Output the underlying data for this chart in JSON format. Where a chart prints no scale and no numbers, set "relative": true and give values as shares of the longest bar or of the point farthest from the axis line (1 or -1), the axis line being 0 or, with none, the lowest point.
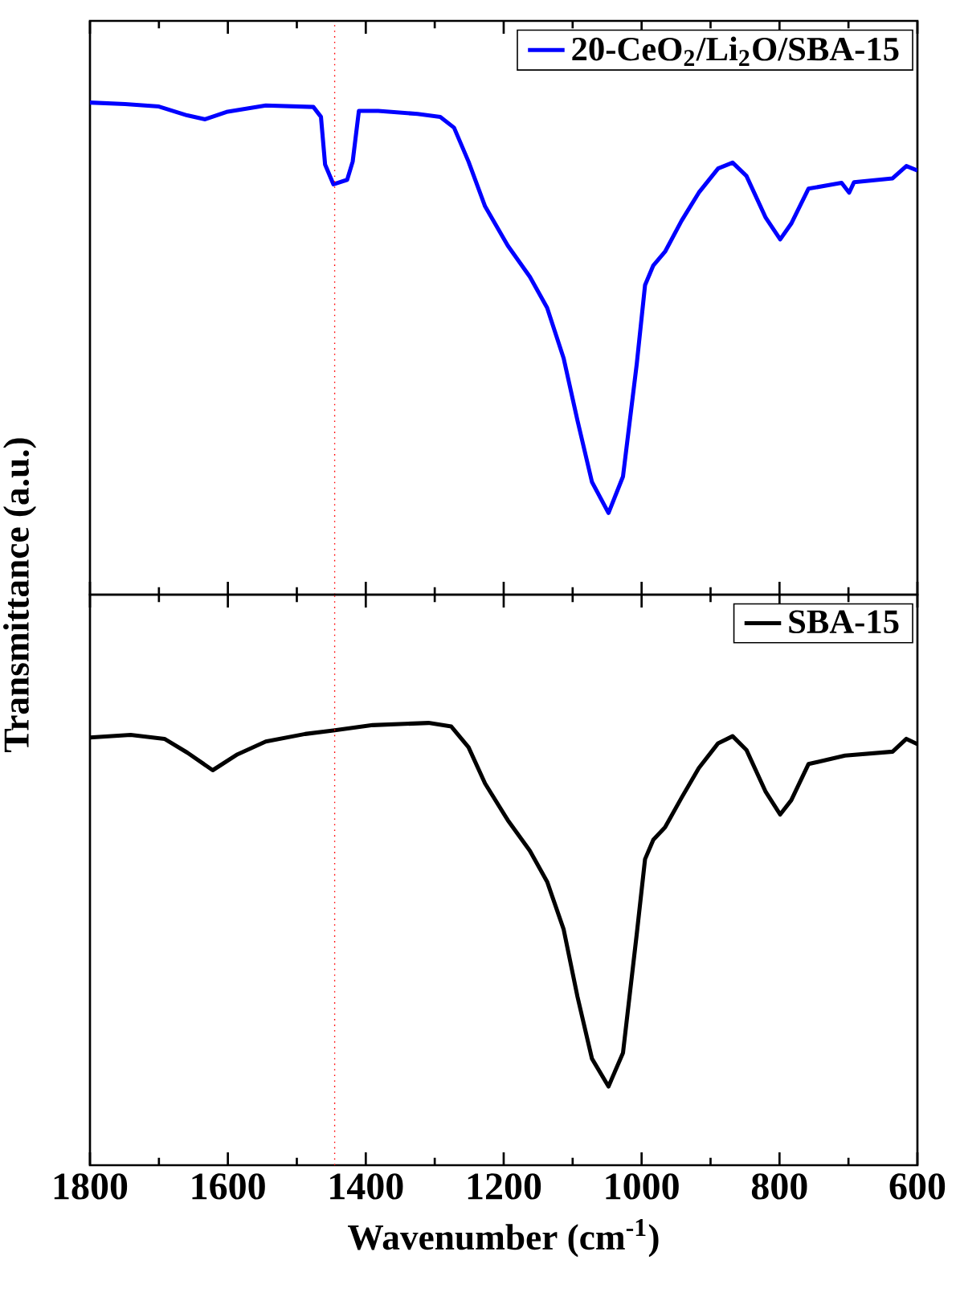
{
  "chart_data": [
    {
      "type": "line",
      "relative": true,
      "ylabel": "Transmittance (a.u.)",
      "xlim": [
        1800,
        600
      ],
      "xticks": [
        1800,
        1600,
        1400,
        1200,
        1000,
        800,
        600
      ],
      "tick_labels": false,
      "legend": "top right",
      "marker": "none",
      "line_style": "solid",
      "ref_lines": [
        {
          "axis": "x",
          "value": 1445,
          "color": "#ff0000",
          "line_style": "dotted"
        }
      ],
      "series": [
        {
          "name": "20-CeO$_{2}$/Li$_{2}$O/SBA-15",
          "color": "#0000ff",
          "x": [
            1800,
            1749,
            1700,
            1659,
            1633,
            1602,
            1545,
            1476,
            1465,
            1459,
            1447,
            1427,
            1419,
            1410,
            1382,
            1325,
            1292,
            1272,
            1251,
            1227,
            1194,
            1162,
            1137,
            1113,
            1093,
            1072,
            1048,
            1027,
            1007,
            995,
            983,
            966,
            942,
            917,
            889,
            868,
            848,
            820,
            799,
            783,
            758,
            710,
            699,
            692,
            636,
            616,
            600
          ],
          "values": [
            1.0,
            0.997,
            0.992,
            0.974,
            0.966,
            0.981,
            0.994,
            0.991,
            0.971,
            0.874,
            0.834,
            0.843,
            0.88,
            0.983,
            0.983,
            0.977,
            0.971,
            0.949,
            0.88,
            0.789,
            0.709,
            0.646,
            0.583,
            0.48,
            0.354,
            0.229,
            0.166,
            0.24,
            0.469,
            0.629,
            0.669,
            0.697,
            0.76,
            0.817,
            0.866,
            0.878,
            0.851,
            0.766,
            0.722,
            0.754,
            0.825,
            0.837,
            0.817,
            0.838,
            0.846,
            0.871,
            0.862
          ]
        }
      ]
    },
    {
      "type": "line",
      "relative": true,
      "xlabel": "Wavenumber (cm$^{-1}$)",
      "xlim": [
        1800,
        600
      ],
      "xticks": [
        1800,
        1600,
        1400,
        1200,
        1000,
        800,
        600
      ],
      "tick_labels": "x",
      "legend": "top right",
      "marker": "none",
      "line_style": "solid",
      "ref_lines": [
        {
          "axis": "x",
          "value": 1445,
          "color": "#ff0000",
          "line_style": "dotted"
        }
      ],
      "series": [
        {
          "name": "SBA-15",
          "color": "#000000",
          "x": [
            1800,
            1741,
            1692,
            1659,
            1622,
            1586,
            1545,
            1488,
            1447,
            1390,
            1309,
            1276,
            1251,
            1227,
            1194,
            1162,
            1137,
            1113,
            1093,
            1072,
            1048,
            1027,
            1007,
            995,
            983,
            966,
            942,
            917,
            889,
            868,
            848,
            820,
            799,
            783,
            758,
            705,
            636,
            616,
            600
          ],
          "values": [
            0.967,
            0.973,
            0.964,
            0.933,
            0.893,
            0.929,
            0.958,
            0.975,
            0.983,
            0.995,
            1.0,
            0.992,
            0.945,
            0.863,
            0.78,
            0.711,
            0.641,
            0.533,
            0.381,
            0.241,
            0.178,
            0.254,
            0.523,
            0.692,
            0.736,
            0.764,
            0.831,
            0.898,
            0.954,
            0.97,
            0.939,
            0.844,
            0.793,
            0.825,
            0.907,
            0.926,
            0.935,
            0.964,
            0.952
          ]
        }
      ]
    }
  ]
}
